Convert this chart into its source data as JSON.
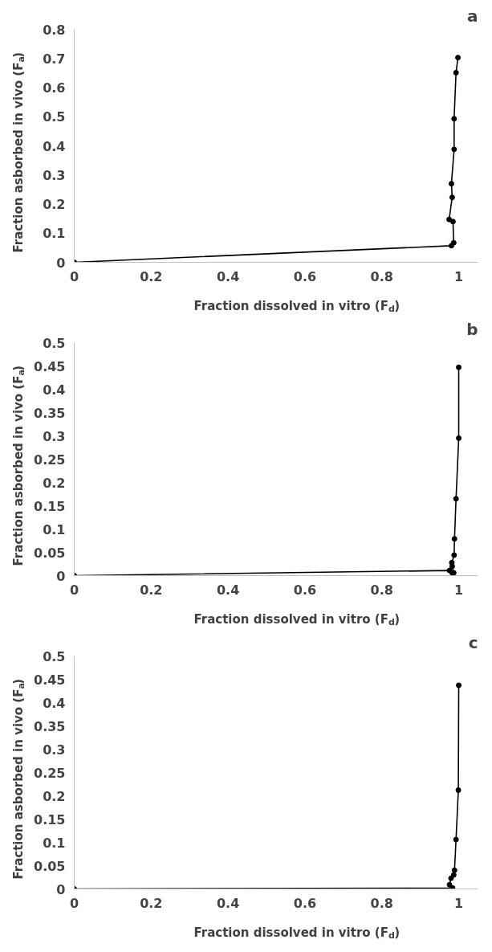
{
  "chart_data": [
    {
      "type": "line",
      "title": "a",
      "xlabel": "Fraction dissolved in vitro (F$_{d}$)",
      "ylabel": "Fraction asborbed in vivo (F$_{a}$)",
      "marker": "circle",
      "grid": false,
      "xlim": [
        0,
        1.05
      ],
      "xticks": [
        0,
        0.2,
        0.4,
        0.6,
        0.8,
        1
      ],
      "ylim": [
        0,
        0.8
      ],
      "yticks": [
        0,
        0.1,
        0.2,
        0.3,
        0.4,
        0.5,
        0.6,
        0.7,
        0.8
      ],
      "series": [
        {
          "color": "#000000",
          "x": [
            0,
            0.981,
            0.987,
            0.985,
            0.975,
            0.983,
            0.981,
            0.988,
            0.988,
            0.993,
            0.998
          ],
          "values": [
            0,
            0.057,
            0.067,
            0.14,
            0.147,
            0.223,
            0.27,
            0.388,
            0.493,
            0.651,
            0.703
          ]
        }
      ]
    },
    {
      "type": "line",
      "title": "b",
      "xlabel": "Fraction dissolved in vitro (F$_{d}$)",
      "ylabel": "Fraction asborbed in vivo (F$_{a}$)",
      "marker": "circle",
      "grid": false,
      "xlim": [
        0,
        1.05
      ],
      "xticks": [
        0,
        0.2,
        0.4,
        0.6,
        0.8,
        1
      ],
      "ylim": [
        0,
        0.5
      ],
      "yticks": [
        0,
        0.05,
        0.1,
        0.15,
        0.2,
        0.25,
        0.3,
        0.35,
        0.4,
        0.45,
        0.5
      ],
      "series": [
        {
          "color": "#000000",
          "x": [
            0,
            0.976,
            0.983,
            0.987,
            0.983,
            0.982,
            0.988,
            0.989,
            0.993,
            1.0,
            1.0
          ],
          "values": [
            0,
            0.011,
            0.006,
            0.006,
            0.02,
            0.028,
            0.044,
            0.079,
            0.165,
            0.295,
            0.447
          ]
        }
      ]
    },
    {
      "type": "line",
      "title": "c",
      "xlabel": "Fraction dissolved in vitro (F$_{d}$)",
      "ylabel": "Fraction asborbed in vivo (F$_{a}$)",
      "marker": "circle",
      "grid": false,
      "xlim": [
        0,
        1.05
      ],
      "xticks": [
        0,
        0.2,
        0.4,
        0.6,
        0.8,
        1
      ],
      "ylim": [
        0,
        0.5
      ],
      "yticks": [
        0,
        0.05,
        0.1,
        0.15,
        0.2,
        0.25,
        0.3,
        0.35,
        0.4,
        0.45,
        0.5
      ],
      "series": [
        {
          "color": "#000000",
          "x": [
            0,
            0.984,
            0.976,
            0.98,
            0.987,
            0.989,
            0.993,
            0.999,
            1.0
          ],
          "values": [
            0,
            0.002,
            0.009,
            0.023,
            0.03,
            0.04,
            0.106,
            0.212,
            0.437
          ]
        }
      ]
    }
  ]
}
